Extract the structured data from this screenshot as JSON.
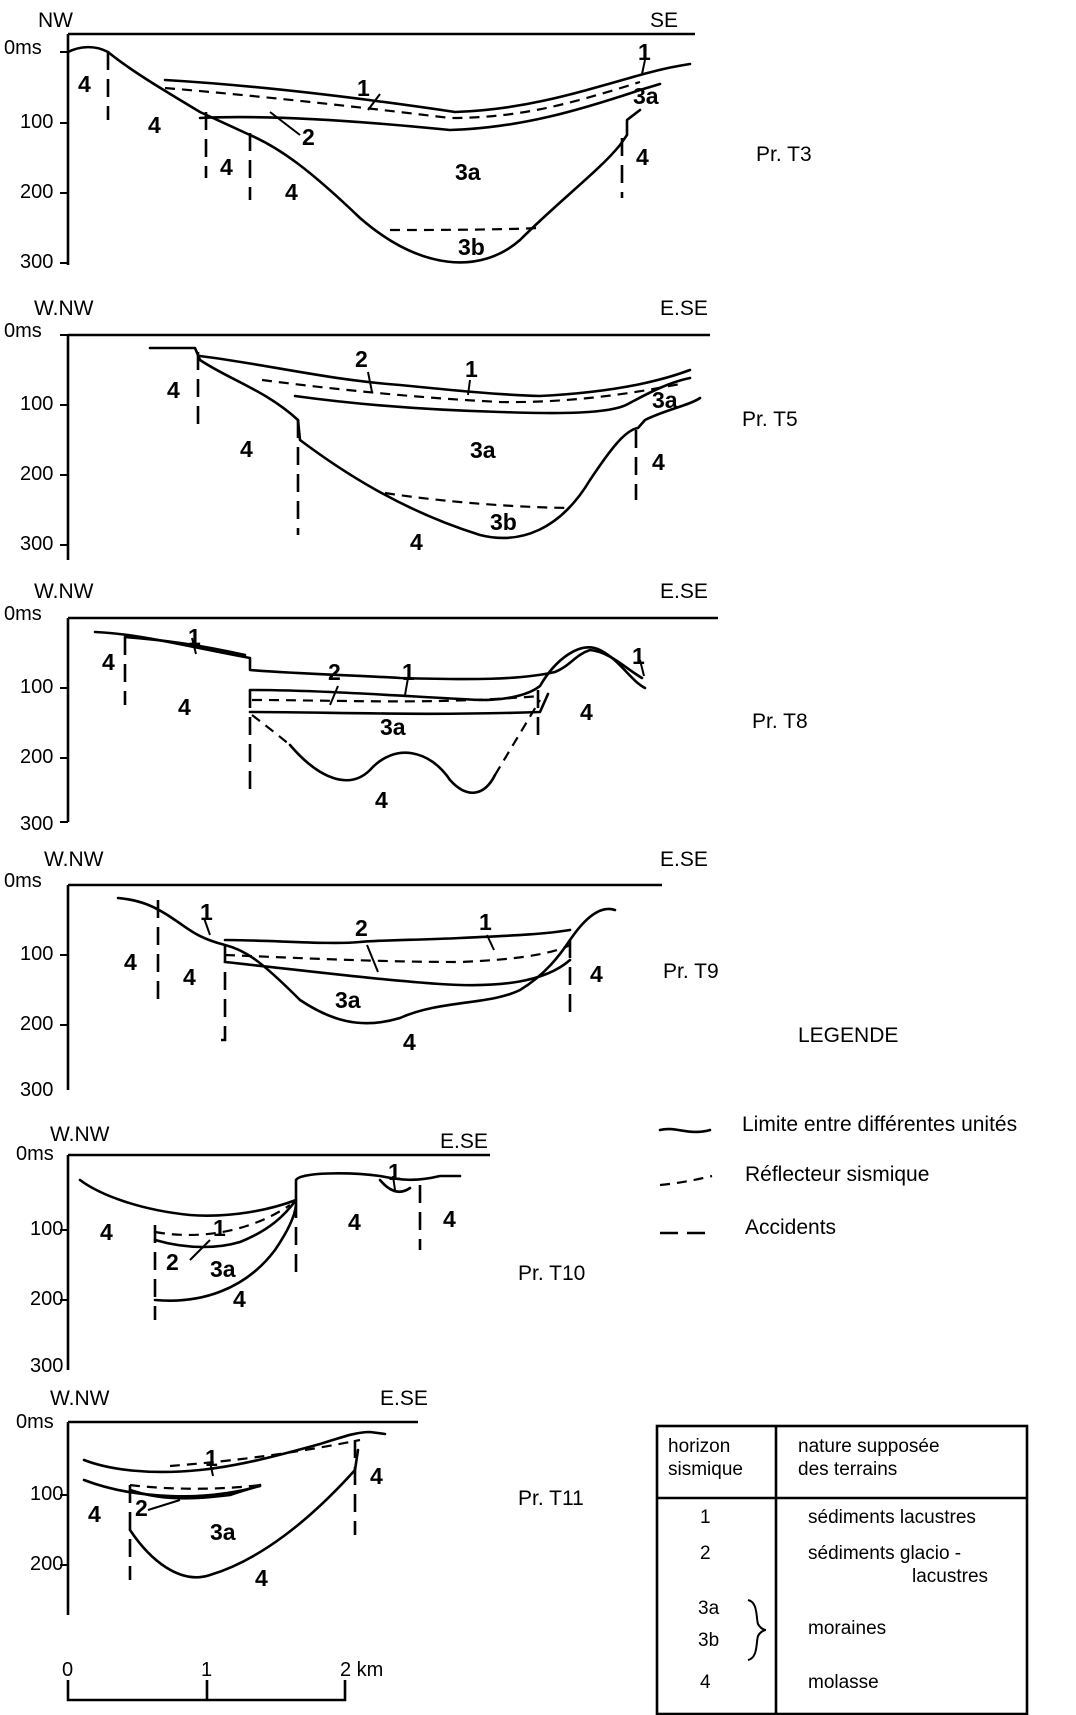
{
  "panels": [
    {
      "id": "T3",
      "profile": "Pr. T3",
      "left": "NW",
      "right": "SE",
      "zero": "0ms",
      "ticks": [
        "100",
        "200",
        "300"
      ],
      "units": [
        "1",
        "2",
        "1",
        "3a",
        "4",
        "4",
        "4",
        "4",
        "4",
        "3a",
        "3b",
        "4"
      ]
    },
    {
      "id": "T5",
      "profile": "Pr. T5",
      "left": "W.NW",
      "right": "E.SE",
      "zero": "0ms",
      "ticks": [
        "100",
        "200",
        "300"
      ],
      "units": [
        "2",
        "1",
        "3a",
        "4",
        "4",
        "3a",
        "4",
        "3b",
        "4"
      ]
    },
    {
      "id": "T8",
      "profile": "Pr. T8",
      "left": "W.NW",
      "right": "E.SE",
      "zero": "0ms",
      "ticks": [
        "100",
        "200",
        "300"
      ],
      "units": [
        "1",
        "2",
        "1",
        "1",
        "4",
        "4",
        "3a",
        "4",
        "4"
      ]
    },
    {
      "id": "T9",
      "profile": "Pr. T9",
      "left": "W.NW",
      "right": "E.SE",
      "zero": "0ms",
      "ticks": [
        "100",
        "200",
        "300"
      ],
      "units": [
        "1",
        "2",
        "1",
        "4",
        "4",
        "3a",
        "4",
        "4"
      ]
    },
    {
      "id": "T10",
      "profile": "Pr. T10",
      "left": "W.NW",
      "right": "E.SE",
      "zero": "0ms",
      "ticks": [
        "100",
        "200",
        "300"
      ],
      "units": [
        "1",
        "4",
        "1",
        "2",
        "3a",
        "4",
        "4",
        "4"
      ]
    },
    {
      "id": "T11",
      "profile": "Pr. T11",
      "left": "W.NW",
      "right": "E.SE",
      "zero": "0ms",
      "ticks": [
        "100",
        "200"
      ],
      "units": [
        "1",
        "4",
        "2",
        "3a",
        "4",
        "4"
      ]
    }
  ],
  "legend": {
    "title": "LEGENDE",
    "items": [
      {
        "symbol": "solid-curve",
        "label": "Limite entre différentes unités"
      },
      {
        "symbol": "dashed-curve",
        "label": "Réflecteur sismique"
      },
      {
        "symbol": "dashed-line",
        "label": "Accidents"
      }
    ]
  },
  "table": {
    "header_col1": [
      "horizon",
      "sismique"
    ],
    "header_col2": [
      "nature supposée",
      "des terrains"
    ],
    "rows": [
      {
        "horizon": "1",
        "nature": [
          "sédiments lacustres"
        ]
      },
      {
        "horizon": "2",
        "nature": [
          "sédiments glacio -",
          "lacustres"
        ]
      },
      {
        "horizon": "3a",
        "horizon2": "3b",
        "nature": [
          "moraines"
        ]
      },
      {
        "horizon": "4",
        "nature": [
          "molasse"
        ]
      }
    ]
  },
  "scale": {
    "labels": [
      "0",
      "1",
      "2 km"
    ]
  }
}
